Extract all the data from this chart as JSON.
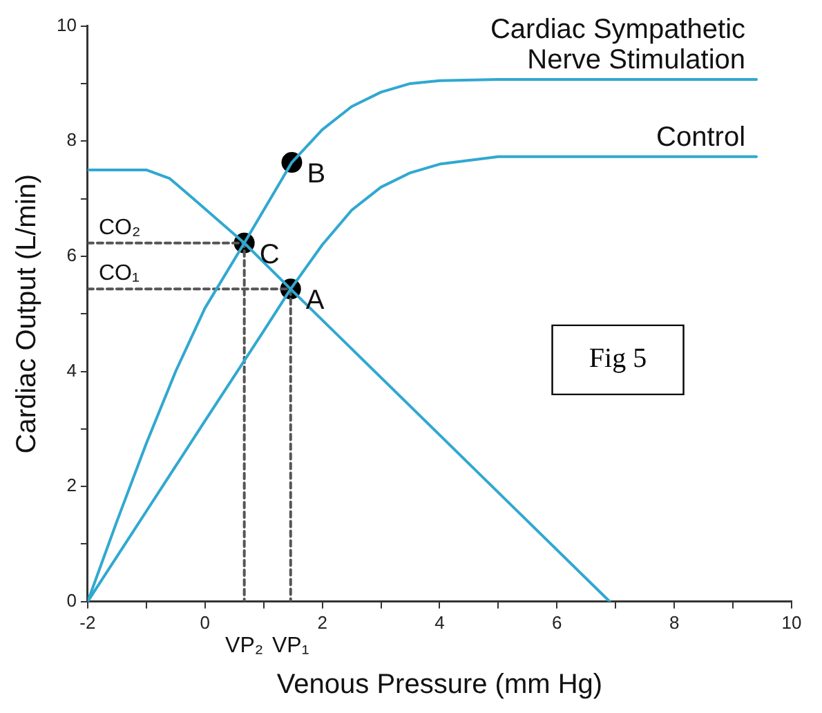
{
  "chart_data": {
    "type": "line",
    "xlabel": "Venous Pressure (mm Hg)",
    "ylabel": "Cardiac Output (L/min)",
    "xlim": [
      -2,
      10
    ],
    "ylim": [
      0,
      10
    ],
    "xticks": [
      -2,
      {
        "value": -1,
        "label": null
      },
      0,
      {
        "value": 1,
        "label": null
      },
      2,
      {
        "value": 3,
        "label": null
      },
      4,
      {
        "value": 5,
        "label": null
      },
      6,
      {
        "value": 7,
        "label": null
      },
      8,
      {
        "value": 9,
        "label": null
      },
      10
    ],
    "yticks": [
      0,
      {
        "value": 1,
        "label": null
      },
      2,
      {
        "value": 3,
        "label": null
      },
      4,
      {
        "value": 5,
        "label": null
      },
      6,
      {
        "value": 7,
        "label": null
      },
      8,
      {
        "value": 9,
        "label": null
      },
      10
    ],
    "grid": false,
    "legend": false,
    "series": [
      {
        "name": "Cardiac Sympathetic Nerve Stimulation",
        "type": "line",
        "color": "#31a8d0",
        "marker": "none",
        "line_style": "solid",
        "x": [
          -2,
          -1.5,
          -1,
          -0.5,
          0,
          0.67,
          1,
          1.48,
          2,
          2.5,
          3,
          3.5,
          4,
          5,
          9.4
        ],
        "values": [
          0,
          1.4,
          2.75,
          4.0,
          5.1,
          6.23,
          6.8,
          7.63,
          8.2,
          8.6,
          8.85,
          9.0,
          9.05,
          9.07,
          9.07
        ]
      },
      {
        "name": "Control",
        "type": "line",
        "color": "#31a8d0",
        "marker": "none",
        "line_style": "solid",
        "x": [
          -2,
          -1,
          0,
          1,
          1.46,
          2,
          2.5,
          3,
          3.5,
          4,
          5,
          9.4
        ],
        "values": [
          0,
          1.57,
          3.14,
          4.7,
          5.43,
          6.2,
          6.8,
          7.2,
          7.45,
          7.6,
          7.73,
          7.73
        ]
      },
      {
        "type": "line",
        "color": "#31a8d0",
        "marker": "none",
        "line_style": "solid",
        "x": [
          -2,
          -1,
          -0.6,
          -0.2,
          0.67,
          1.46,
          6.9
        ],
        "values": [
          7.5,
          7.5,
          7.35,
          7.0,
          6.23,
          5.43,
          0
        ]
      },
      {
        "type": "line",
        "color": "#555555",
        "marker": "none",
        "line_style": "dashed",
        "x": [
          -2,
          0.67,
          0.67
        ],
        "values": [
          6.23,
          6.23,
          0
        ]
      },
      {
        "type": "line",
        "color": "#555555",
        "marker": "none",
        "line_style": "dashed",
        "x": [
          -2,
          1.46,
          1.46
        ],
        "values": [
          5.43,
          5.43,
          0
        ]
      },
      {
        "type": "scatter",
        "color": "#000000",
        "marker": "circle",
        "x": [
          1.46,
          1.48,
          0.67
        ],
        "values": [
          5.43,
          7.63,
          6.23
        ]
      }
    ],
    "annotations": [
      {
        "text": "A",
        "x": 1.46,
        "y": 5.43
      },
      {
        "text": "B",
        "x": 1.48,
        "y": 7.63
      },
      {
        "text": "C",
        "x": 0.67,
        "y": 6.23
      },
      {
        "text": "CO₂",
        "y": 6.23
      },
      {
        "text": "CO₁",
        "y": 5.43
      },
      {
        "text": "VP₂",
        "x": 0.67,
        "y": 0
      },
      {
        "text": "VP₁",
        "x": 1.46,
        "y": 0
      },
      "Fig 5"
    ]
  }
}
